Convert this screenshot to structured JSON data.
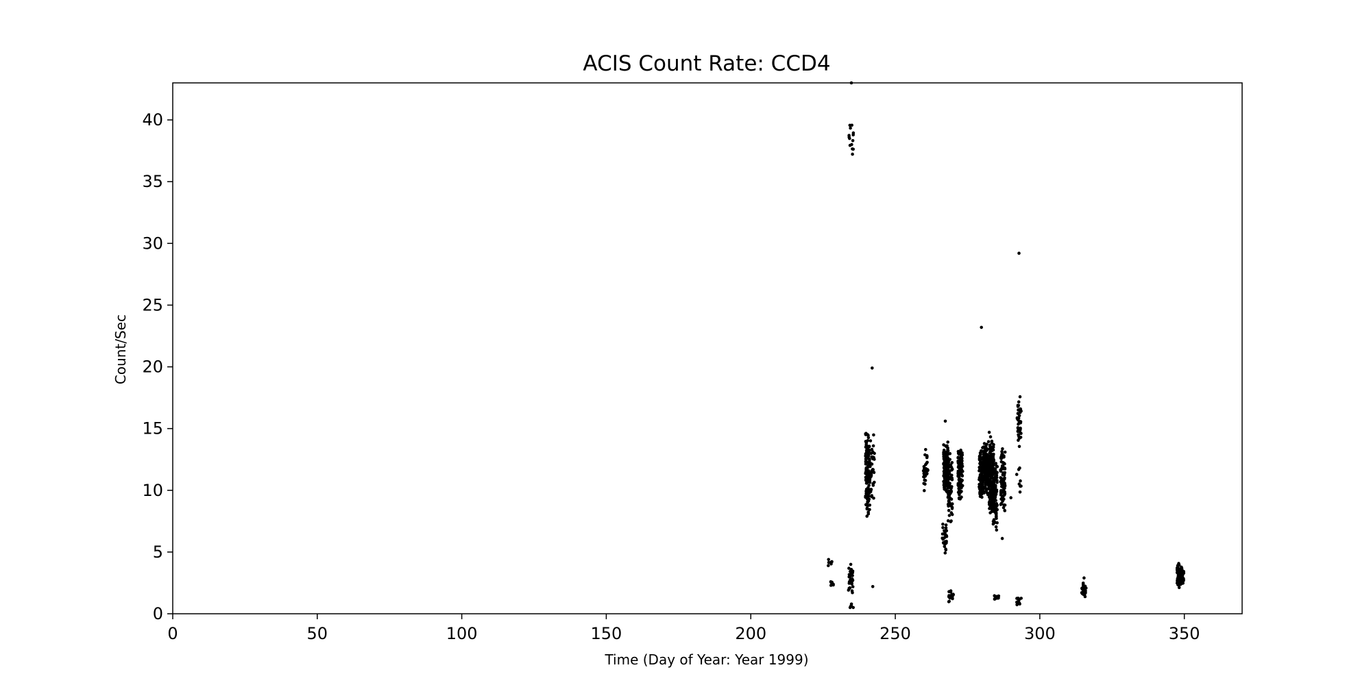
{
  "chart_data": {
    "type": "scatter",
    "title": "ACIS Count Rate: CCD4",
    "xlabel": "Time (Day of Year: Year 1999)",
    "ylabel": "Count/Sec",
    "xlim": [
      0,
      370
    ],
    "ylim": [
      0,
      43
    ],
    "xticks": [
      0,
      50,
      100,
      150,
      200,
      250,
      300,
      350
    ],
    "yticks": [
      0,
      5,
      10,
      15,
      20,
      25,
      30,
      35,
      40
    ],
    "grid": false,
    "legend": "none",
    "marker_color": "#000000",
    "clusters": [
      {
        "x": 227.6,
        "ymin": 3.9,
        "ymax": 4.4,
        "n": 7
      },
      {
        "x": 227.8,
        "ymin": 2.2,
        "ymax": 2.7,
        "n": 6
      },
      {
        "x": 234.6,
        "ymin": 1.6,
        "ymax": 3.9,
        "n": 34
      },
      {
        "x": 235.0,
        "ymin": 0.4,
        "ymax": 0.8,
        "n": 5
      },
      {
        "x": 234.8,
        "ymin": 37.0,
        "ymax": 39.8,
        "n": 14
      },
      {
        "x": 240.5,
        "ymin": 7.6,
        "ymax": 14.8,
        "n": 130
      },
      {
        "x": 242.0,
        "ymin": 8.5,
        "ymax": 14.5,
        "n": 40
      },
      {
        "x": 260.5,
        "ymin": 9.8,
        "ymax": 13.2,
        "n": 30
      },
      {
        "x": 267.0,
        "ymin": 4.7,
        "ymax": 7.5,
        "n": 30
      },
      {
        "x": 267.5,
        "ymin": 9.5,
        "ymax": 14.0,
        "n": 140
      },
      {
        "x": 269.0,
        "ymin": 7.0,
        "ymax": 13.5,
        "n": 70
      },
      {
        "x": 269.3,
        "ymin": 0.9,
        "ymax": 2.0,
        "n": 16
      },
      {
        "x": 272.5,
        "ymin": 9.0,
        "ymax": 13.7,
        "n": 110
      },
      {
        "x": 279.8,
        "ymin": 9.0,
        "ymax": 13.8,
        "n": 110
      },
      {
        "x": 281.5,
        "ymin": 9.5,
        "ymax": 14.0,
        "n": 120
      },
      {
        "x": 283.3,
        "ymin": 7.8,
        "ymax": 14.5,
        "n": 140
      },
      {
        "x": 284.5,
        "ymin": 6.4,
        "ymax": 12.8,
        "n": 90
      },
      {
        "x": 285.0,
        "ymin": 1.1,
        "ymax": 1.5,
        "n": 10
      },
      {
        "x": 287.2,
        "ymin": 8.2,
        "ymax": 13.5,
        "n": 100
      },
      {
        "x": 292.8,
        "ymin": 13.5,
        "ymax": 17.8,
        "n": 40
      },
      {
        "x": 292.8,
        "ymin": 9.8,
        "ymax": 12.0,
        "n": 8
      },
      {
        "x": 292.8,
        "ymin": 0.7,
        "ymax": 1.4,
        "n": 10
      },
      {
        "x": 315.3,
        "ymin": 1.3,
        "ymax": 2.6,
        "n": 22
      },
      {
        "x": 348.3,
        "ymin": 2.0,
        "ymax": 4.3,
        "n": 70
      },
      {
        "x": 349.0,
        "ymin": 2.1,
        "ymax": 3.8,
        "n": 40
      }
    ],
    "points": [
      {
        "x": 234.8,
        "y": 43.0
      },
      {
        "x": 242.0,
        "y": 19.9
      },
      {
        "x": 242.2,
        "y": 2.2
      },
      {
        "x": 279.8,
        "y": 23.2
      },
      {
        "x": 292.8,
        "y": 29.2
      },
      {
        "x": 267.3,
        "y": 15.6
      },
      {
        "x": 287.0,
        "y": 6.1
      },
      {
        "x": 240.2,
        "y": 7.9
      },
      {
        "x": 282.5,
        "y": 14.7
      },
      {
        "x": 260.5,
        "y": 13.3
      },
      {
        "x": 290.0,
        "y": 9.4
      },
      {
        "x": 315.3,
        "y": 2.9
      },
      {
        "x": 234.6,
        "y": 4.0
      }
    ]
  }
}
